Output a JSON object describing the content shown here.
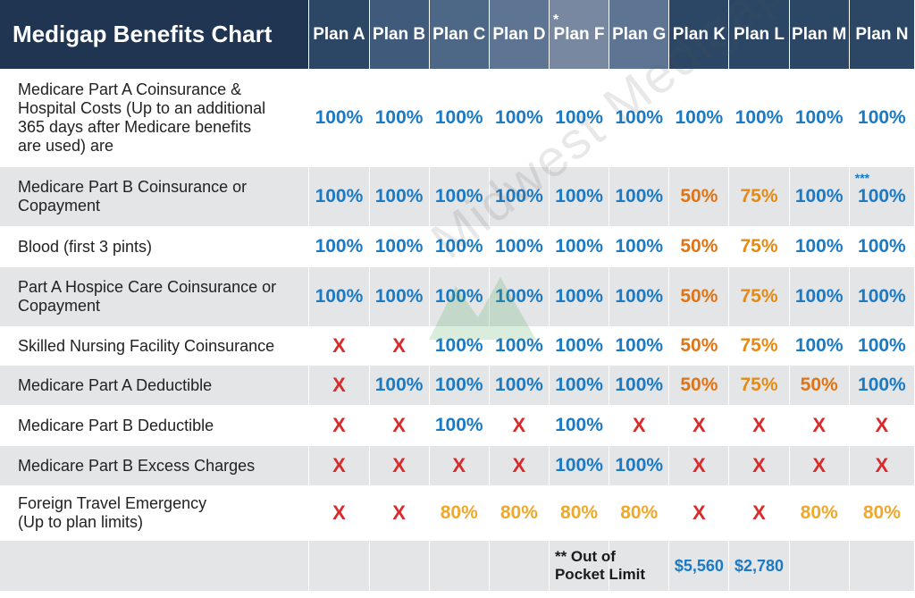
{
  "chart_data": {
    "type": "table",
    "title": "Medigap Benefits Chart",
    "columns": [
      {
        "label": "Plan A",
        "mark": ""
      },
      {
        "label": "Plan B",
        "mark": ""
      },
      {
        "label": "Plan C",
        "mark": ""
      },
      {
        "label": "Plan D",
        "mark": ""
      },
      {
        "label": "Plan F",
        "mark": "*"
      },
      {
        "label": "Plan G",
        "mark": ""
      },
      {
        "label": "Plan K",
        "mark": ""
      },
      {
        "label": "Plan L",
        "mark": ""
      },
      {
        "label": "Plan M",
        "mark": ""
      },
      {
        "label": "Plan N",
        "mark": ""
      }
    ],
    "rows": [
      {
        "label": "Medicare Part A Coinsurance & Hospital Costs  (Up to an additional 365 days after Medicare benefits are used) are",
        "values": [
          "100%",
          "100%",
          "100%",
          "100%",
          "100%",
          "100%",
          "100%",
          "100%",
          "100%",
          "100%"
        ]
      },
      {
        "label": "Medicare Part B Coinsurance or Copayment",
        "values": [
          "100%",
          "100%",
          "100%",
          "100%",
          "100%",
          "100%",
          "50%",
          "75%",
          "100%",
          "100%"
        ]
      },
      {
        "label": "Blood (first 3 pints)",
        "values": [
          "100%",
          "100%",
          "100%",
          "100%",
          "100%",
          "100%",
          "50%",
          "75%",
          "100%",
          "100%"
        ]
      },
      {
        "label": "Part A Hospice Care Coinsurance or Copayment",
        "values": [
          "100%",
          "100%",
          "100%",
          "100%",
          "100%",
          "100%",
          "50%",
          "75%",
          "100%",
          "100%"
        ]
      },
      {
        "label": "Skilled Nursing Facility Coinsurance",
        "values": [
          "X",
          "X",
          "100%",
          "100%",
          "100%",
          "100%",
          "50%",
          "75%",
          "100%",
          "100%"
        ]
      },
      {
        "label": "Medicare Part A Deductible",
        "values": [
          "X",
          "100%",
          "100%",
          "100%",
          "100%",
          "100%",
          "50%",
          "75%",
          "50%",
          "100%"
        ]
      },
      {
        "label": "Medicare Part B Deductible",
        "values": [
          "X",
          "X",
          "100%",
          "X",
          "100%",
          "X",
          "X",
          "X",
          "X",
          "X"
        ]
      },
      {
        "label": "Medicare Part B Excess Charges",
        "values": [
          "X",
          "X",
          "X",
          "X",
          "100%",
          "100%",
          "X",
          "X",
          "X",
          "X"
        ]
      },
      {
        "label": "Foreign Travel Emergency (Up to plan limits)",
        "values": [
          "X",
          "X",
          "80%",
          "80%",
          "80%",
          "80%",
          "X",
          "X",
          "80%",
          "80%"
        ]
      }
    ],
    "footnote_mark_plan_n_part_b": "***",
    "out_of_pocket": {
      "label_line1": "** Out of",
      "label_line2": "Pocket Limit",
      "plan_k": "$5,560",
      "plan_l": "$2,780"
    },
    "watermark": "Midwest Medigap",
    "colors": {
      "header_dark": "#1f3552",
      "value_blue": "#1a7ac4",
      "value_orange": "#e07414",
      "value_gold": "#f0a82a",
      "x_red": "#d92b2b",
      "row_shade": "#e4e5e7"
    }
  }
}
